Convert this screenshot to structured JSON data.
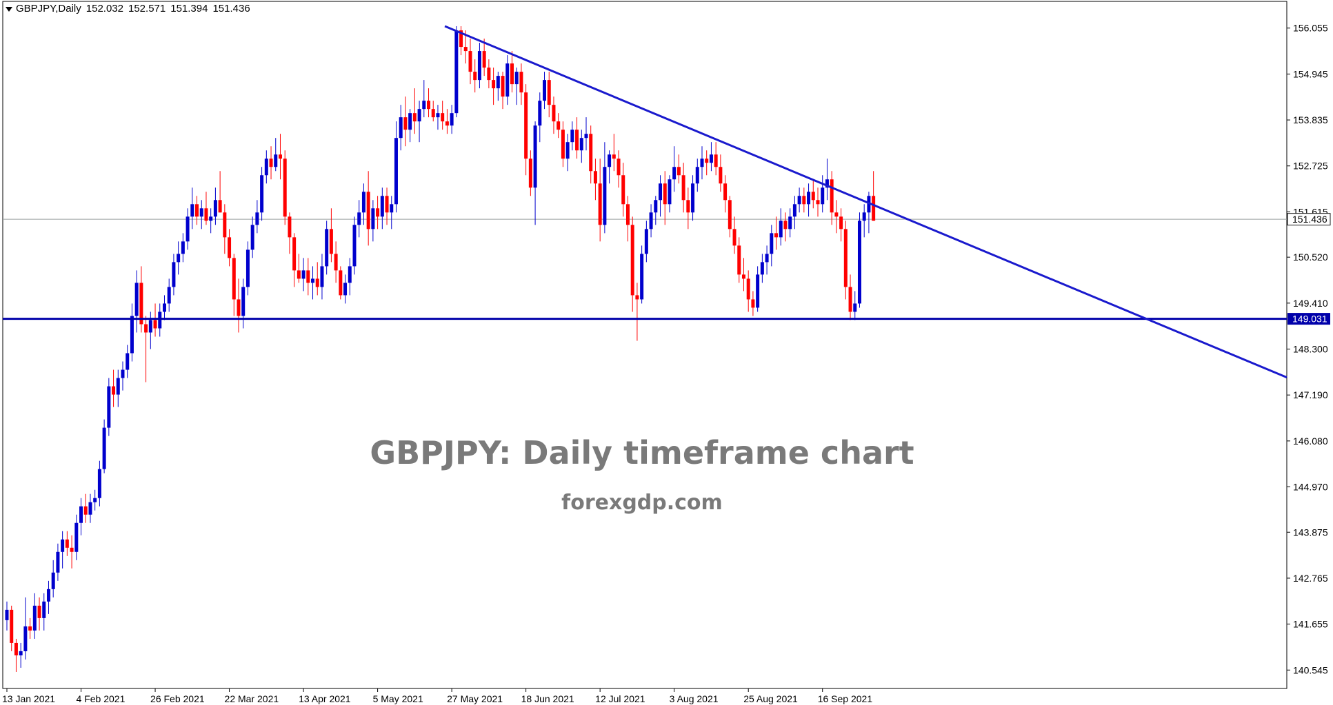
{
  "header": {
    "symbol": "GBPJPY,Daily",
    "open": "152.032",
    "high": "152.571",
    "low": "151.394",
    "close": "151.436"
  },
  "watermark": {
    "title": "GBPJPY: Daily timeframe chart",
    "site": "forexgdp.com"
  },
  "colors": {
    "bull": "#0000CD",
    "bear": "#FF0000",
    "trendline": "#1A1ACD",
    "support": "#0000AA",
    "current_price_line": "#9AA0A0",
    "current_price_box": "#1a1a1a",
    "support_box": "#0000AA",
    "grid_frame": "#000000"
  },
  "chart_data": {
    "type": "candlestick",
    "symbol": "GBPJPY",
    "timeframe": "Daily",
    "ylim": [
      140.1,
      156.7
    ],
    "y_ticks": [
      "156.055",
      "154.945",
      "153.835",
      "152.725",
      "151.615",
      "150.520",
      "149.410",
      "148.300",
      "147.190",
      "146.080",
      "144.970",
      "143.875",
      "142.765",
      "141.655",
      "140.545"
    ],
    "x_ticks": [
      {
        "label": "13 Jan 2021",
        "bar": 0
      },
      {
        "label": "4 Feb 2021",
        "bar": 16
      },
      {
        "label": "26 Feb 2021",
        "bar": 32
      },
      {
        "label": "22 Mar 2021",
        "bar": 48
      },
      {
        "label": "13 Apr 2021",
        "bar": 64
      },
      {
        "label": "5 May 2021",
        "bar": 80
      },
      {
        "label": "27 May 2021",
        "bar": 96
      },
      {
        "label": "18 Jun 2021",
        "bar": 112
      },
      {
        "label": "12 Jul 2021",
        "bar": 128
      },
      {
        "label": "3 Aug 2021",
        "bar": 144
      },
      {
        "label": "25 Aug 2021",
        "bar": 160
      },
      {
        "label": "16 Sep 2021",
        "bar": 176
      }
    ],
    "current_price": "151.436",
    "support_level": "149.031",
    "trendline": {
      "start_bar": 94.5,
      "start_price": 156.1,
      "slope_per_bar": -0.0467
    },
    "ohlc": [
      [
        141.75,
        142.2,
        141.5,
        142.0
      ],
      [
        142.0,
        142.1,
        141.0,
        141.2
      ],
      [
        141.2,
        141.3,
        140.5,
        140.9
      ],
      [
        140.9,
        141.2,
        140.6,
        141.0
      ],
      [
        141.0,
        142.3,
        140.8,
        141.6
      ],
      [
        141.6,
        141.8,
        141.3,
        141.5
      ],
      [
        141.5,
        142.4,
        141.3,
        142.1
      ],
      [
        142.1,
        142.3,
        141.5,
        141.8
      ],
      [
        141.8,
        142.4,
        141.5,
        142.2
      ],
      [
        142.2,
        142.7,
        141.9,
        142.5
      ],
      [
        142.5,
        143.2,
        142.3,
        142.9
      ],
      [
        142.9,
        143.6,
        142.7,
        143.4
      ],
      [
        143.4,
        143.9,
        143.0,
        143.7
      ],
      [
        143.7,
        143.9,
        143.3,
        143.5
      ],
      [
        143.5,
        143.8,
        143.0,
        143.4
      ],
      [
        143.4,
        144.3,
        143.2,
        144.1
      ],
      [
        144.1,
        144.7,
        143.8,
        144.5
      ],
      [
        144.5,
        144.8,
        144.1,
        144.3
      ],
      [
        144.3,
        144.8,
        144.1,
        144.6
      ],
      [
        144.6,
        144.9,
        144.4,
        144.7
      ],
      [
        144.7,
        145.6,
        144.5,
        145.4
      ],
      [
        145.4,
        146.6,
        145.3,
        146.4
      ],
      [
        146.4,
        147.6,
        146.2,
        147.4
      ],
      [
        147.4,
        147.8,
        146.9,
        147.2
      ],
      [
        147.2,
        147.8,
        146.9,
        147.6
      ],
      [
        147.6,
        148.0,
        147.3,
        147.8
      ],
      [
        147.8,
        148.4,
        147.6,
        148.2
      ],
      [
        148.2,
        149.4,
        148.0,
        149.1
      ],
      [
        149.1,
        150.2,
        148.7,
        149.9
      ],
      [
        149.9,
        150.3,
        148.7,
        148.9
      ],
      [
        148.9,
        149.1,
        147.5,
        148.7
      ],
      [
        148.7,
        149.2,
        148.3,
        149.0
      ],
      [
        149.0,
        149.4,
        148.6,
        148.8
      ],
      [
        148.8,
        149.4,
        148.6,
        149.2
      ],
      [
        149.2,
        149.6,
        149.0,
        149.4
      ],
      [
        149.4,
        150.0,
        149.2,
        149.8
      ],
      [
        149.8,
        150.6,
        149.6,
        150.4
      ],
      [
        150.4,
        150.9,
        150.1,
        150.6
      ],
      [
        150.6,
        151.1,
        150.4,
        150.9
      ],
      [
        150.9,
        151.7,
        150.7,
        151.5
      ],
      [
        151.5,
        152.2,
        151.2,
        151.8
      ],
      [
        151.8,
        152.0,
        151.3,
        151.5
      ],
      [
        151.5,
        151.9,
        151.2,
        151.7
      ],
      [
        151.7,
        152.1,
        151.3,
        151.4
      ],
      [
        151.4,
        151.7,
        151.1,
        151.5
      ],
      [
        151.5,
        152.2,
        151.3,
        151.9
      ],
      [
        151.9,
        152.6,
        151.6,
        151.6
      ],
      [
        151.6,
        151.8,
        150.6,
        151.0
      ],
      [
        151.0,
        151.2,
        150.3,
        150.5
      ],
      [
        150.5,
        150.6,
        149.1,
        149.5
      ],
      [
        149.5,
        150.0,
        148.7,
        149.1
      ],
      [
        149.1,
        150.0,
        148.8,
        149.8
      ],
      [
        149.8,
        150.9,
        149.6,
        150.7
      ],
      [
        150.7,
        151.5,
        150.5,
        151.3
      ],
      [
        151.3,
        151.9,
        151.1,
        151.6
      ],
      [
        151.6,
        152.7,
        151.4,
        152.5
      ],
      [
        152.5,
        153.1,
        152.3,
        152.9
      ],
      [
        152.9,
        153.2,
        152.4,
        152.7
      ],
      [
        152.7,
        153.4,
        152.6,
        153.0
      ],
      [
        153.0,
        153.5,
        152.4,
        152.9
      ],
      [
        152.9,
        153.1,
        151.3,
        151.5
      ],
      [
        151.5,
        151.6,
        150.6,
        151.0
      ],
      [
        151.0,
        151.1,
        149.8,
        150.2
      ],
      [
        150.2,
        150.6,
        149.9,
        150.0
      ],
      [
        150.0,
        150.5,
        149.7,
        150.2
      ],
      [
        150.2,
        150.5,
        149.6,
        149.9
      ],
      [
        149.9,
        150.3,
        149.5,
        150.0
      ],
      [
        150.0,
        150.4,
        149.6,
        149.8
      ],
      [
        149.8,
        150.6,
        149.5,
        150.3
      ],
      [
        150.3,
        151.4,
        150.1,
        151.2
      ],
      [
        151.2,
        151.7,
        150.4,
        150.6
      ],
      [
        150.6,
        150.9,
        149.9,
        150.2
      ],
      [
        150.2,
        150.3,
        149.5,
        149.6
      ],
      [
        149.6,
        150.1,
        149.4,
        149.9
      ],
      [
        149.9,
        150.5,
        149.6,
        150.3
      ],
      [
        150.3,
        151.5,
        150.1,
        151.3
      ],
      [
        151.3,
        151.9,
        151.0,
        151.6
      ],
      [
        151.6,
        152.3,
        151.3,
        152.1
      ],
      [
        152.1,
        152.6,
        150.8,
        151.2
      ],
      [
        151.2,
        151.9,
        150.9,
        151.7
      ],
      [
        151.7,
        152.0,
        151.2,
        151.5
      ],
      [
        151.5,
        152.2,
        151.2,
        152.0
      ],
      [
        152.0,
        152.2,
        151.3,
        151.6
      ],
      [
        151.6,
        152.0,
        151.2,
        151.8
      ],
      [
        151.8,
        153.8,
        151.6,
        153.4
      ],
      [
        153.4,
        154.2,
        153.1,
        153.9
      ],
      [
        153.9,
        154.4,
        153.2,
        153.6
      ],
      [
        153.6,
        154.1,
        153.3,
        154.0
      ],
      [
        154.0,
        154.6,
        153.5,
        153.8
      ],
      [
        153.8,
        154.3,
        153.3,
        154.1
      ],
      [
        154.1,
        154.8,
        153.9,
        154.3
      ],
      [
        154.3,
        154.6,
        153.9,
        154.1
      ],
      [
        154.1,
        154.3,
        153.8,
        153.9
      ],
      [
        153.9,
        154.2,
        153.6,
        154.0
      ],
      [
        154.0,
        154.3,
        153.6,
        153.8
      ],
      [
        153.8,
        154.1,
        153.5,
        153.7
      ],
      [
        153.7,
        154.2,
        153.5,
        154.0
      ],
      [
        154.0,
        156.1,
        153.9,
        156.0
      ],
      [
        156.0,
        156.1,
        155.4,
        155.6
      ],
      [
        155.6,
        156.0,
        155.2,
        155.5
      ],
      [
        155.5,
        155.8,
        154.7,
        155.0
      ],
      [
        155.0,
        155.3,
        154.5,
        154.8
      ],
      [
        154.8,
        155.7,
        154.6,
        155.5
      ],
      [
        155.5,
        155.8,
        154.9,
        155.1
      ],
      [
        155.1,
        155.3,
        154.6,
        154.8
      ],
      [
        154.8,
        155.1,
        154.2,
        154.6
      ],
      [
        154.6,
        155.0,
        154.3,
        154.9
      ],
      [
        154.9,
        155.0,
        154.1,
        154.4
      ],
      [
        154.4,
        155.4,
        154.2,
        155.2
      ],
      [
        155.2,
        155.5,
        154.5,
        154.7
      ],
      [
        154.7,
        155.1,
        154.2,
        155.0
      ],
      [
        155.0,
        155.2,
        154.2,
        154.5
      ],
      [
        154.5,
        154.7,
        152.5,
        152.9
      ],
      [
        152.9,
        153.1,
        152.0,
        152.2
      ],
      [
        152.2,
        153.8,
        151.3,
        153.7
      ],
      [
        153.7,
        154.5,
        153.3,
        154.3
      ],
      [
        154.3,
        155.0,
        154.1,
        154.8
      ],
      [
        154.8,
        155.0,
        153.9,
        154.2
      ],
      [
        154.2,
        154.4,
        153.5,
        153.8
      ],
      [
        153.8,
        154.0,
        153.4,
        153.6
      ],
      [
        153.6,
        153.8,
        152.7,
        152.9
      ],
      [
        152.9,
        153.5,
        152.6,
        153.3
      ],
      [
        153.3,
        153.8,
        153.1,
        153.6
      ],
      [
        153.6,
        153.9,
        152.9,
        153.1
      ],
      [
        153.1,
        153.6,
        152.8,
        153.4
      ],
      [
        153.4,
        153.9,
        153.1,
        153.5
      ],
      [
        153.5,
        153.7,
        152.3,
        152.6
      ],
      [
        152.6,
        152.9,
        151.9,
        152.3
      ],
      [
        152.3,
        152.9,
        150.9,
        151.3
      ],
      [
        151.3,
        153.3,
        151.1,
        152.7
      ],
      [
        152.7,
        153.1,
        152.3,
        153.0
      ],
      [
        153.0,
        153.5,
        152.6,
        152.9
      ],
      [
        152.9,
        153.1,
        152.2,
        152.5
      ],
      [
        152.5,
        152.8,
        151.5,
        151.8
      ],
      [
        151.8,
        152.0,
        150.9,
        151.3
      ],
      [
        151.3,
        151.5,
        149.2,
        149.6
      ],
      [
        149.6,
        149.9,
        148.5,
        149.5
      ],
      [
        149.5,
        150.8,
        149.4,
        150.6
      ],
      [
        150.6,
        151.4,
        150.4,
        151.2
      ],
      [
        151.2,
        151.8,
        151.0,
        151.6
      ],
      [
        151.6,
        152.0,
        151.3,
        151.9
      ],
      [
        151.9,
        152.5,
        151.5,
        152.3
      ],
      [
        152.3,
        152.6,
        151.3,
        151.8
      ],
      [
        151.8,
        152.5,
        151.6,
        152.4
      ],
      [
        152.4,
        153.2,
        152.1,
        152.7
      ],
      [
        152.7,
        153.0,
        152.3,
        152.5
      ],
      [
        152.5,
        152.8,
        151.6,
        151.9
      ],
      [
        151.9,
        152.2,
        151.2,
        151.6
      ],
      [
        151.6,
        152.5,
        151.4,
        152.3
      ],
      [
        152.3,
        152.9,
        152.1,
        152.7
      ],
      [
        152.7,
        153.2,
        152.4,
        152.9
      ],
      [
        152.9,
        153.1,
        152.5,
        152.8
      ],
      [
        152.8,
        153.3,
        152.6,
        153.0
      ],
      [
        153.0,
        153.3,
        152.5,
        152.7
      ],
      [
        152.7,
        153.0,
        152.1,
        152.3
      ],
      [
        152.3,
        152.5,
        151.6,
        151.9
      ],
      [
        151.9,
        152.0,
        151.0,
        151.2
      ],
      [
        151.2,
        151.5,
        150.6,
        150.8
      ],
      [
        150.8,
        151.0,
        149.9,
        150.1
      ],
      [
        150.1,
        150.5,
        149.7,
        150.0
      ],
      [
        150.0,
        150.2,
        149.2,
        149.5
      ],
      [
        149.5,
        149.7,
        149.1,
        149.3
      ],
      [
        149.3,
        150.3,
        149.2,
        150.1
      ],
      [
        150.1,
        150.6,
        149.9,
        150.4
      ],
      [
        150.4,
        150.8,
        150.1,
        150.6
      ],
      [
        150.6,
        151.3,
        150.3,
        151.1
      ],
      [
        151.1,
        151.5,
        150.7,
        151.0
      ],
      [
        151.0,
        151.7,
        150.8,
        151.4
      ],
      [
        151.4,
        151.6,
        150.9,
        151.2
      ],
      [
        151.2,
        151.7,
        151.0,
        151.5
      ],
      [
        151.5,
        152.0,
        151.2,
        151.8
      ],
      [
        151.8,
        152.2,
        151.6,
        152.0
      ],
      [
        152.0,
        152.2,
        151.6,
        151.8
      ],
      [
        151.8,
        152.3,
        151.5,
        152.1
      ],
      [
        152.1,
        152.4,
        151.7,
        151.9
      ],
      [
        151.9,
        152.2,
        151.5,
        151.8
      ],
      [
        151.8,
        152.5,
        151.6,
        152.2
      ],
      [
        152.2,
        152.9,
        151.9,
        152.4
      ],
      [
        152.4,
        152.6,
        151.3,
        151.6
      ],
      [
        151.6,
        151.9,
        151.1,
        151.5
      ],
      [
        151.5,
        151.7,
        150.9,
        151.2
      ],
      [
        151.2,
        151.4,
        149.5,
        149.8
      ],
      [
        149.8,
        150.1,
        149.0,
        149.2
      ],
      [
        149.2,
        149.7,
        149.0,
        149.4
      ],
      [
        149.4,
        151.6,
        149.3,
        151.4
      ],
      [
        151.4,
        151.8,
        151.0,
        151.6
      ],
      [
        151.6,
        152.1,
        151.1,
        152.0
      ],
      [
        152.0,
        152.6,
        151.4,
        151.4
      ]
    ]
  }
}
